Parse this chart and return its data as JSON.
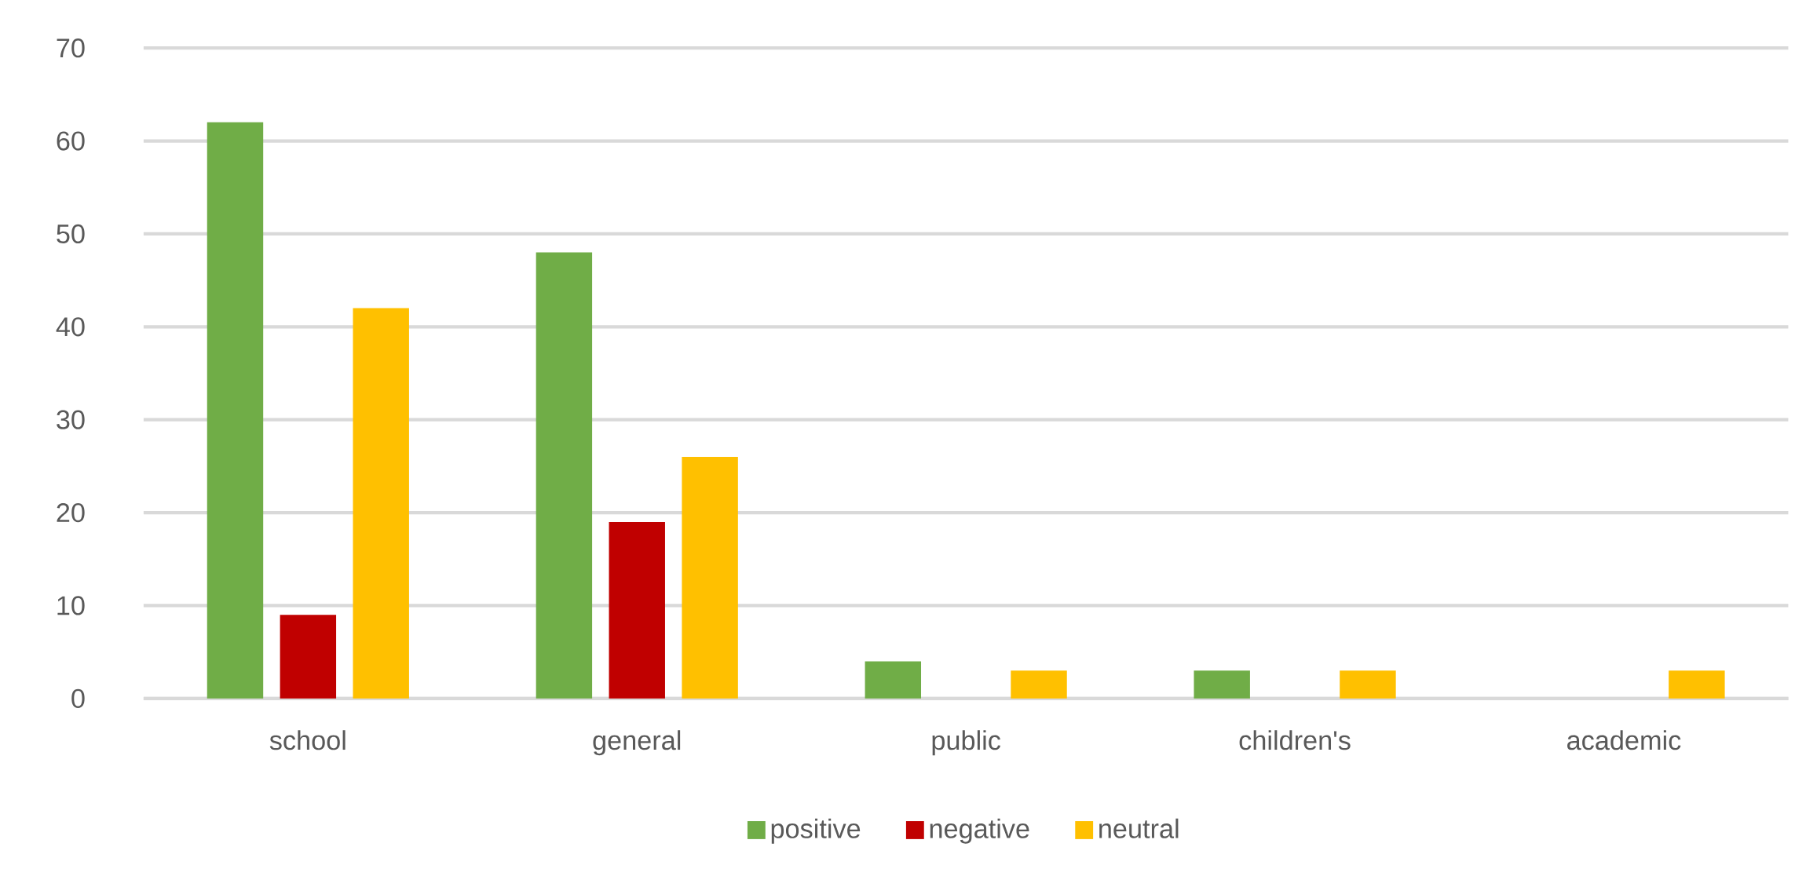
{
  "chart_data": {
    "type": "bar",
    "categories": [
      "school",
      "general",
      "public",
      "children's",
      "academic"
    ],
    "series": [
      {
        "name": "positive",
        "color": "#70ad47",
        "values": [
          62,
          48,
          4,
          3,
          0
        ]
      },
      {
        "name": "negative",
        "color": "#c00000",
        "values": [
          9,
          19,
          0,
          0,
          0
        ]
      },
      {
        "name": "neutral",
        "color": "#ffc000",
        "values": [
          42,
          26,
          3,
          3,
          3
        ]
      }
    ],
    "ylim": [
      0,
      70
    ],
    "yticks": [
      0,
      10,
      20,
      30,
      40,
      50,
      60,
      70
    ],
    "grid": "y",
    "legend": "bottom"
  }
}
